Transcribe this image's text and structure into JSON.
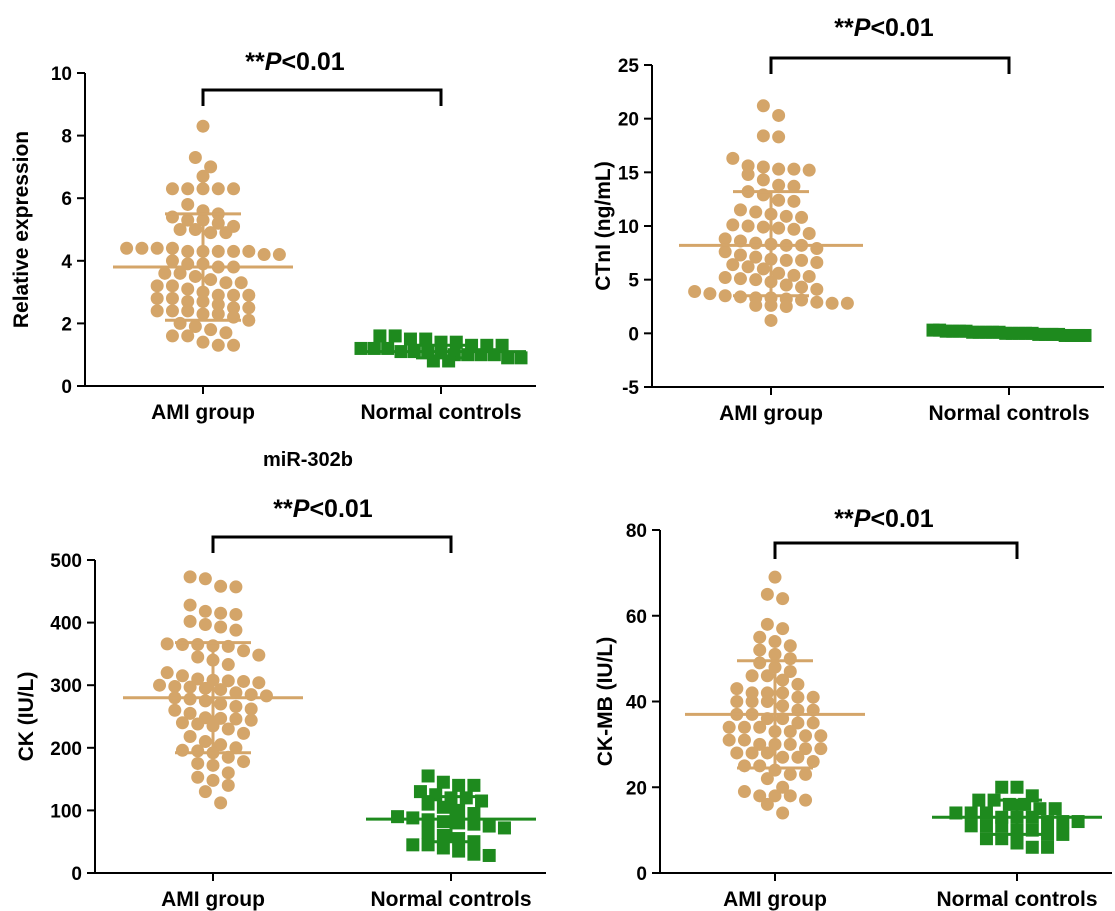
{
  "colors": {
    "ami": "#d4a569",
    "normal": "#1e8a1e",
    "axis": "#000000"
  },
  "caption": "miR-302b",
  "chart_data": [
    {
      "type": "scatter",
      "ylabel": "Relative expression",
      "categories": [
        "AMI group",
        "Normal controls"
      ],
      "ylim": [
        0,
        10
      ],
      "yticks": [
        0,
        2,
        4,
        6,
        8,
        10
      ],
      "significance": "**P<0.01",
      "series": [
        {
          "category": "AMI group",
          "marker": "circle",
          "mean": 3.8,
          "sd_low": 2.1,
          "sd_high": 5.5,
          "values": [
            8.3,
            7.3,
            7.0,
            6.7,
            6.3,
            6.3,
            6.3,
            6.3,
            6.3,
            5.8,
            5.6,
            5.5,
            5.4,
            5.3,
            5.3,
            5.2,
            5.1,
            5.0,
            5.0,
            4.9,
            4.9,
            4.4,
            4.4,
            4.4,
            4.4,
            4.3,
            4.3,
            4.3,
            4.3,
            4.3,
            4.2,
            4.2,
            4.0,
            3.9,
            3.9,
            3.8,
            3.8,
            3.6,
            3.6,
            3.5,
            3.4,
            3.3,
            3.3,
            3.2,
            3.2,
            3.1,
            3.0,
            2.9,
            2.9,
            2.9,
            2.8,
            2.8,
            2.7,
            2.7,
            2.6,
            2.5,
            2.5,
            2.4,
            2.4,
            2.4,
            2.3,
            2.3,
            2.2,
            2.1,
            2.0,
            1.9,
            1.8,
            1.7,
            1.6,
            1.6,
            1.4,
            1.3,
            1.3
          ]
        },
        {
          "category": "Normal controls",
          "marker": "square",
          "mean": 1.1,
          "sd_low": 0.9,
          "sd_high": 1.3,
          "values": [
            1.6,
            1.6,
            1.5,
            1.5,
            1.4,
            1.4,
            1.3,
            1.3,
            1.3,
            1.2,
            1.2,
            1.2,
            1.1,
            1.1,
            1.1,
            1.1,
            1.0,
            1.0,
            1.0,
            1.0,
            0.9,
            0.9,
            0.8,
            0.8
          ]
        }
      ]
    },
    {
      "type": "scatter",
      "ylabel": "CTnI (ng/mL)",
      "categories": [
        "AMI group",
        "Normal controls"
      ],
      "ylim": [
        -5,
        25
      ],
      "yticks": [
        -5,
        0,
        5,
        10,
        15,
        20,
        25
      ],
      "significance": "**P<0.01",
      "series": [
        {
          "category": "AMI group",
          "marker": "circle",
          "mean": 8.2,
          "sd_low": 3.5,
          "sd_high": 13.2,
          "values": [
            21.2,
            20.3,
            18.4,
            18.3,
            16.3,
            15.6,
            15.5,
            15.3,
            15.3,
            15.2,
            14.8,
            14.3,
            13.8,
            13.7,
            13.2,
            12.9,
            12.4,
            12.3,
            11.5,
            11.3,
            11.1,
            10.9,
            10.8,
            10.1,
            10.0,
            9.9,
            9.8,
            9.7,
            9.3,
            8.8,
            8.6,
            8.4,
            8.3,
            8.2,
            8.2,
            7.9,
            7.6,
            7.3,
            7.1,
            6.9,
            6.8,
            6.8,
            6.6,
            6.4,
            6.2,
            6.0,
            5.6,
            5.4,
            5.3,
            5.2,
            5.1,
            5.0,
            4.8,
            4.5,
            4.3,
            4.1,
            3.9,
            3.7,
            3.5,
            3.4,
            3.3,
            3.3,
            3.2,
            3.1,
            2.9,
            2.8,
            2.8,
            2.6,
            2.6,
            2.5,
            1.2
          ]
        },
        {
          "category": "Normal controls",
          "marker": "square",
          "mean": 0.1,
          "sd_low": -0.1,
          "sd_high": 0.3,
          "values": [
            0.3,
            0.3,
            0.2,
            0.2,
            0.2,
            0.2,
            0.1,
            0.1,
            0.1,
            0.1,
            0.1,
            0.0,
            0.0,
            0.0,
            0.0,
            0.0,
            -0.1,
            -0.1,
            -0.1,
            -0.1,
            -0.2,
            -0.2,
            -0.2,
            -0.2
          ]
        }
      ]
    },
    {
      "type": "scatter",
      "ylabel": "CK (IU/L)",
      "categories": [
        "AMI group",
        "Normal controls"
      ],
      "ylim": [
        0,
        500
      ],
      "yticks": [
        0,
        100,
        200,
        300,
        400,
        500
      ],
      "significance": "**P<0.01",
      "series": [
        {
          "category": "AMI group",
          "marker": "circle",
          "mean": 280,
          "sd_low": 192,
          "sd_high": 368,
          "values": [
            473,
            470,
            458,
            457,
            428,
            418,
            415,
            413,
            402,
            397,
            393,
            388,
            366,
            365,
            365,
            363,
            362,
            355,
            348,
            345,
            340,
            333,
            320,
            315,
            310,
            308,
            307,
            306,
            304,
            300,
            298,
            297,
            295,
            293,
            288,
            285,
            283,
            280,
            278,
            275,
            270,
            266,
            262,
            260,
            255,
            248,
            247,
            246,
            244,
            240,
            238,
            235,
            230,
            223,
            218,
            210,
            205,
            200,
            196,
            195,
            192,
            185,
            178,
            175,
            172,
            160,
            153,
            148,
            140,
            130,
            112
          ]
        },
        {
          "category": "Normal controls",
          "marker": "square",
          "mean": 86,
          "sd_low": 50,
          "sd_high": 122,
          "values": [
            155,
            145,
            140,
            140,
            130,
            125,
            120,
            120,
            115,
            110,
            105,
            100,
            95,
            90,
            88,
            85,
            82,
            80,
            78,
            75,
            72,
            65,
            60,
            55,
            50,
            45,
            45,
            40,
            35,
            30,
            28
          ]
        }
      ]
    },
    {
      "type": "scatter",
      "ylabel": "CK-MB (IU/L)",
      "categories": [
        "AMI group",
        "Normal controls"
      ],
      "ylim": [
        0,
        80
      ],
      "yticks": [
        0,
        20,
        40,
        60,
        80
      ],
      "significance": "**P<0.01",
      "series": [
        {
          "category": "AMI group",
          "marker": "circle",
          "mean": 37,
          "sd_low": 24.5,
          "sd_high": 49.5,
          "values": [
            69,
            65,
            64,
            58,
            57,
            55,
            54,
            53,
            52,
            51,
            50,
            49,
            48,
            47,
            46,
            46,
            45,
            44,
            43,
            42,
            42,
            42,
            41,
            41,
            40,
            40,
            40,
            39,
            38,
            38,
            37,
            37,
            36,
            36,
            35,
            35,
            34,
            34,
            34,
            33,
            33,
            32,
            32,
            31,
            31,
            30,
            30,
            30,
            29,
            29,
            28,
            28,
            28,
            27,
            27,
            26,
            25,
            25,
            24,
            23,
            23,
            22,
            20,
            19,
            18,
            18,
            18,
            17,
            16,
            14
          ]
        },
        {
          "category": "Normal controls",
          "marker": "square",
          "mean": 13,
          "sd_low": 9,
          "sd_high": 17,
          "values": [
            20,
            20,
            18,
            17,
            17,
            16,
            16,
            15,
            15,
            14,
            14,
            14,
            13,
            13,
            13,
            12,
            12,
            12,
            11,
            11,
            11,
            10,
            10,
            9,
            9,
            8,
            8,
            7,
            6,
            6
          ]
        }
      ]
    }
  ]
}
